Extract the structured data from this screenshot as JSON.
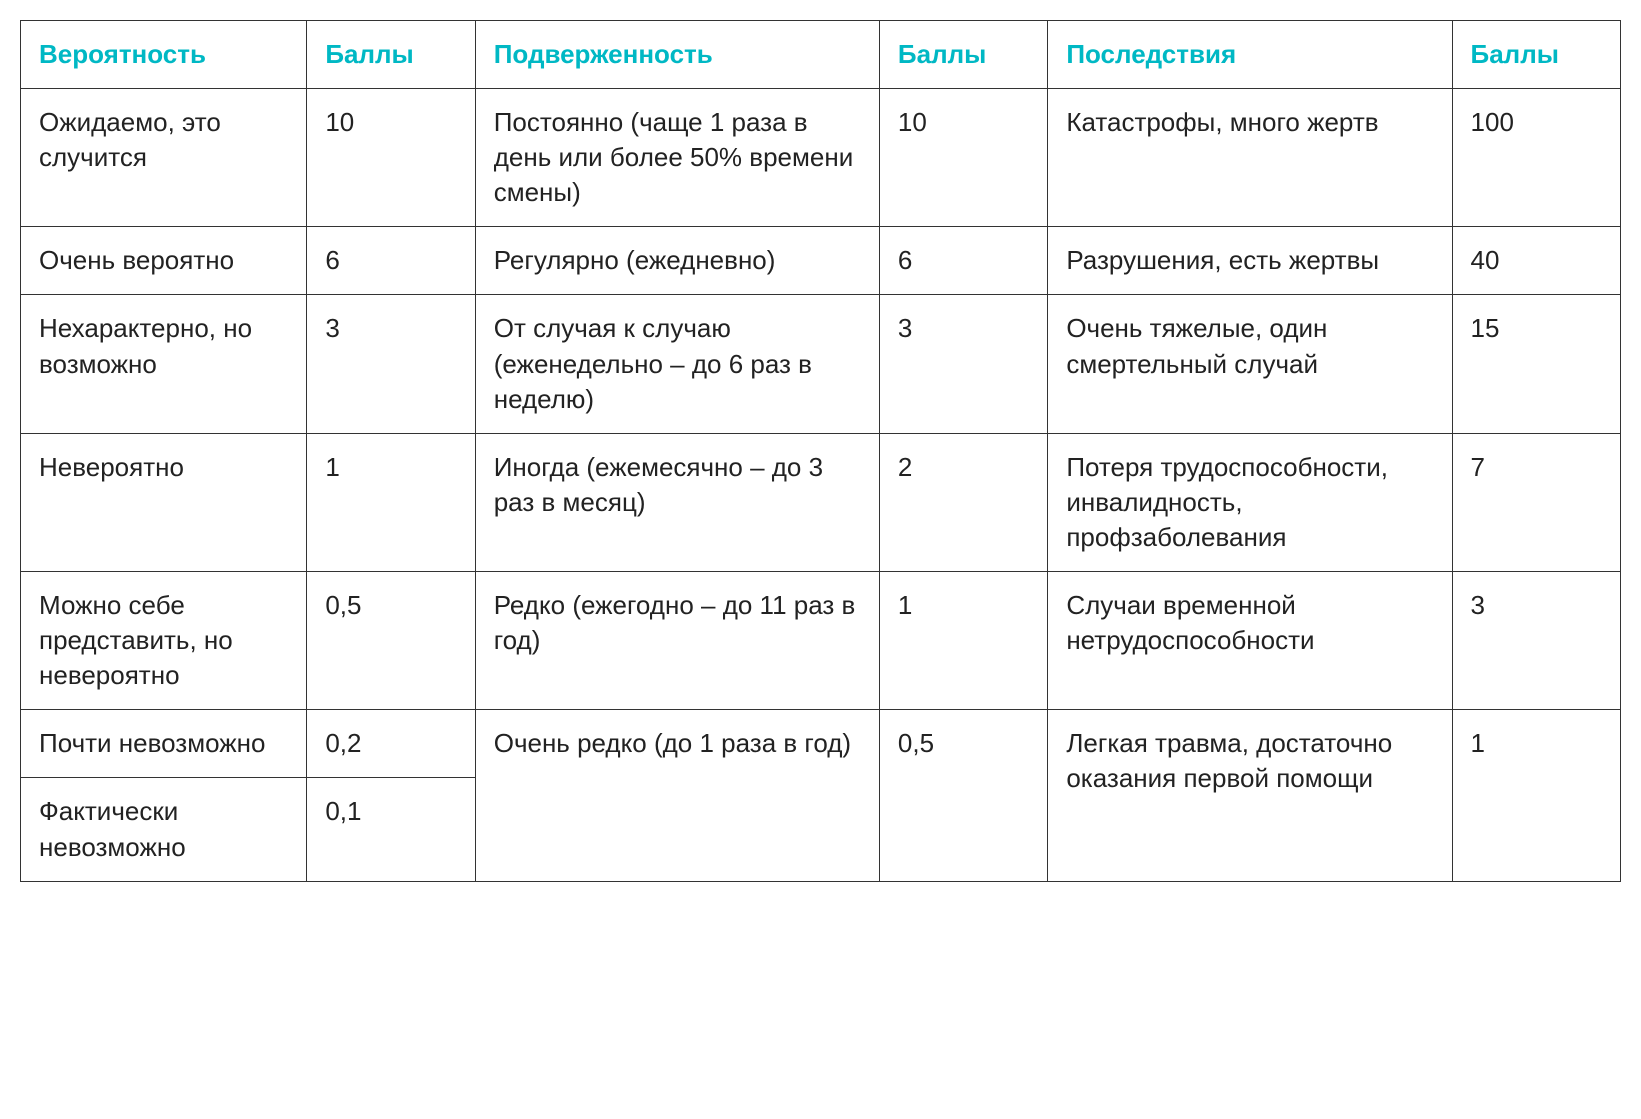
{
  "table": {
    "type": "table",
    "header_color": "#00b8c4",
    "text_color": "#222222",
    "border_color": "#333333",
    "background_color": "#ffffff",
    "header_fontsize": 26,
    "cell_fontsize": 26,
    "columns": [
      {
        "key": "probability",
        "label": "Вероятность",
        "width_pct": 17
      },
      {
        "key": "prob_score",
        "label": "Баллы",
        "width_pct": 10
      },
      {
        "key": "exposure",
        "label": "Подверженность",
        "width_pct": 24
      },
      {
        "key": "exp_score",
        "label": "Баллы",
        "width_pct": 10
      },
      {
        "key": "consequence",
        "label": "Последствия",
        "width_pct": 24
      },
      {
        "key": "cons_score",
        "label": "Баллы",
        "width_pct": 10
      }
    ],
    "rows": [
      {
        "probability": "Ожидаемо, это случится",
        "prob_score": "10",
        "exposure": "Постоянно (чаще 1 раза в день или более 50% времени смены)",
        "exp_score": "10",
        "consequence": "Катастрофы, много жертв",
        "cons_score": "100"
      },
      {
        "probability": "Очень веро­ятно",
        "prob_score": "6",
        "exposure": "Регулярно (ежеднев­но)",
        "exp_score": "6",
        "consequence": "Разрушения, есть жертвы",
        "cons_score": "40"
      },
      {
        "probability": "Нехарактерно, но возможно",
        "prob_score": "3",
        "exposure": "От случая к случаю (еженедельно – до 6 раз в неделю)",
        "exp_score": "3",
        "consequence": "Очень тяжелые, один смертельный случай",
        "cons_score": "15"
      },
      {
        "probability": "Невероятно",
        "prob_score": "1",
        "exposure": "Иногда (ежемесячно – до 3 раз в месяц)",
        "exp_score": "2",
        "consequence": "Потеря трудоспособности, инвалидность, профзаболевания",
        "cons_score": "7"
      },
      {
        "probability": "Можно себе представить, но невероятно",
        "prob_score": "0,5",
        "exposure": "Редко (ежегодно – до 11 раз в год)",
        "exp_score": "1",
        "consequence": "Случаи временной нетрудоспособно­сти",
        "cons_score": "3"
      },
      {
        "probability": "Почти невоз­можно",
        "prob_score": "0,2",
        "exposure": "Очень редко (до 1 ра­за в год)",
        "exp_score": "0,5",
        "consequence": "Легкая травма, до­статочно оказания первой помощи",
        "cons_score": "1",
        "exposure_rowspan": 2,
        "exp_score_rowspan": 2,
        "consequence_rowspan": 2,
        "cons_score_rowspan": 2
      },
      {
        "probability": "Фактически невозможно",
        "prob_score": "0,1"
      }
    ]
  }
}
